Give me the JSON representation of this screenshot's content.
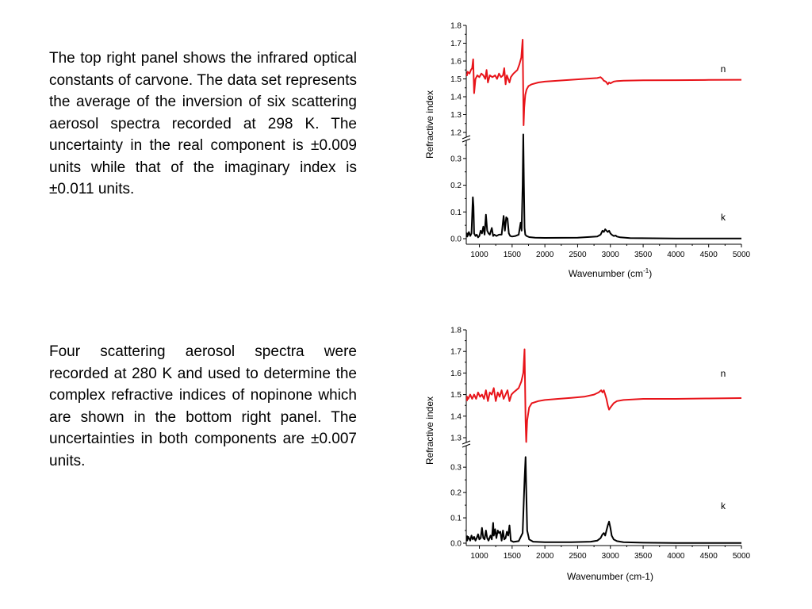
{
  "paragraphs": {
    "top": "The top right panel shows the infrared optical constants of carvone.  The data set represents the average of the inversion of six scattering aerosol spectra recorded at 298 K.  The uncertainty in the real component is ±0.009 units while that of the imaginary index is ±0.011 units.",
    "bottom": "Four scattering aerosol spectra were recorded at 280 K and used to determine the complex refractive indices of nopinone which are shown in the bottom right panel.  The uncertainties in both components are ±0.007 units."
  },
  "colors": {
    "n_series": "#e8141a",
    "k_series": "#000000"
  },
  "chart_data": [
    {
      "type": "line",
      "ylabel": "Refractive index",
      "xlabel": "Wavenumber (cm-1)",
      "xlabel_superscript": true,
      "xlim": [
        800,
        5000
      ],
      "x_ticks": [
        1000,
        1500,
        2000,
        2500,
        3000,
        3500,
        4000,
        4500,
        5000
      ],
      "axis_break": true,
      "n_ylim": [
        1.2,
        1.8
      ],
      "n_ticks": [
        "1.2",
        "1.3",
        "1.4",
        "1.5",
        "1.6",
        "1.7",
        "1.8"
      ],
      "k_ylim": [
        0.0,
        0.35
      ],
      "k_ticks": [
        "0.0",
        "0.1",
        "0.2",
        "0.3"
      ],
      "series": [
        {
          "name": "n",
          "x": [
            780,
            800,
            820,
            850,
            870,
            890,
            905,
            920,
            940,
            970,
            1000,
            1030,
            1060,
            1090,
            1110,
            1130,
            1160,
            1200,
            1240,
            1270,
            1300,
            1330,
            1360,
            1380,
            1400,
            1420,
            1440,
            1460,
            1480,
            1500,
            1520,
            1550,
            1580,
            1610,
            1640,
            1660,
            1675,
            1685,
            1700,
            1720,
            1750,
            1800,
            1900,
            2000,
            2200,
            2400,
            2600,
            2800,
            2850,
            2880,
            2900,
            2930,
            2960,
            2980,
            3000,
            3050,
            3100,
            3200,
            3500,
            4000,
            4500,
            5000
          ],
          "y": [
            1.53,
            1.52,
            1.54,
            1.53,
            1.55,
            1.56,
            1.61,
            1.42,
            1.5,
            1.52,
            1.51,
            1.53,
            1.52,
            1.5,
            1.55,
            1.48,
            1.52,
            1.51,
            1.52,
            1.5,
            1.53,
            1.51,
            1.52,
            1.56,
            1.47,
            1.52,
            1.5,
            1.48,
            1.51,
            1.52,
            1.53,
            1.54,
            1.55,
            1.58,
            1.62,
            1.72,
            1.24,
            1.34,
            1.41,
            1.44,
            1.46,
            1.47,
            1.48,
            1.485,
            1.49,
            1.495,
            1.5,
            1.505,
            1.51,
            1.5,
            1.49,
            1.485,
            1.47,
            1.48,
            1.475,
            1.485,
            1.488,
            1.49,
            1.492,
            1.493,
            1.494,
            1.495
          ]
        },
        {
          "name": "k",
          "x": [
            780,
            800,
            820,
            840,
            860,
            880,
            900,
            910,
            920,
            940,
            960,
            980,
            1000,
            1020,
            1040,
            1060,
            1080,
            1100,
            1120,
            1140,
            1160,
            1190,
            1210,
            1230,
            1260,
            1300,
            1340,
            1370,
            1390,
            1410,
            1430,
            1450,
            1470,
            1500,
            1550,
            1600,
            1630,
            1645,
            1660,
            1670,
            1680,
            1690,
            1700,
            1720,
            1760,
            1850,
            2000,
            2500,
            2800,
            2850,
            2880,
            2900,
            2920,
            2940,
            2960,
            2980,
            3000,
            3020,
            3050,
            3080,
            3100,
            3150,
            3300,
            4000,
            5000
          ],
          "y": [
            0.005,
            0.02,
            0.01,
            0.025,
            0.01,
            0.02,
            0.155,
            0.12,
            0.02,
            0.01,
            0.015,
            0.005,
            0.01,
            0.03,
            0.02,
            0.045,
            0.015,
            0.09,
            0.03,
            0.02,
            0.015,
            0.04,
            0.01,
            0.015,
            0.01,
            0.015,
            0.015,
            0.085,
            0.03,
            0.08,
            0.075,
            0.02,
            0.01,
            0.008,
            0.01,
            0.015,
            0.06,
            0.03,
            0.2,
            0.39,
            0.2,
            0.04,
            0.015,
            0.01,
            0.006,
            0.004,
            0.003,
            0.004,
            0.008,
            0.015,
            0.03,
            0.025,
            0.035,
            0.03,
            0.025,
            0.03,
            0.02,
            0.015,
            0.01,
            0.012,
            0.008,
            0.005,
            0.002,
            0.001,
            0.001
          ]
        }
      ]
    },
    {
      "type": "line",
      "ylabel": "Refractive index",
      "xlabel": "Wavenumber (cm-1)",
      "xlabel_superscript": false,
      "xlim": [
        800,
        5000
      ],
      "x_ticks": [
        1000,
        1500,
        2000,
        2500,
        3000,
        3500,
        4000,
        4500,
        5000
      ],
      "axis_break": true,
      "n_ylim": [
        1.25,
        1.8
      ],
      "n_ticks": [
        "1.3",
        "1.4",
        "1.5",
        "1.6",
        "1.7",
        "1.8"
      ],
      "k_ylim": [
        0.0,
        0.36
      ],
      "k_ticks": [
        "0.0",
        "0.1",
        "0.2",
        "0.3"
      ],
      "series": [
        {
          "name": "n",
          "x": [
            780,
            800,
            830,
            860,
            890,
            920,
            950,
            980,
            1010,
            1040,
            1070,
            1100,
            1130,
            1160,
            1190,
            1220,
            1250,
            1280,
            1310,
            1340,
            1370,
            1400,
            1430,
            1460,
            1490,
            1520,
            1560,
            1600,
            1640,
            1670,
            1690,
            1705,
            1715,
            1730,
            1760,
            1800,
            1900,
            2000,
            2200,
            2400,
            2600,
            2750,
            2820,
            2860,
            2880,
            2900,
            2920,
            2940,
            2960,
            2980,
            3000,
            3050,
            3100,
            3200,
            3500,
            4000,
            4500,
            5000
          ],
          "y": [
            1.47,
            1.49,
            1.48,
            1.5,
            1.48,
            1.5,
            1.48,
            1.51,
            1.49,
            1.5,
            1.48,
            1.52,
            1.47,
            1.51,
            1.5,
            1.53,
            1.47,
            1.51,
            1.49,
            1.52,
            1.48,
            1.5,
            1.52,
            1.47,
            1.5,
            1.51,
            1.52,
            1.53,
            1.56,
            1.6,
            1.71,
            1.38,
            1.28,
            1.38,
            1.44,
            1.46,
            1.47,
            1.475,
            1.48,
            1.485,
            1.49,
            1.5,
            1.51,
            1.52,
            1.51,
            1.52,
            1.5,
            1.48,
            1.45,
            1.43,
            1.44,
            1.46,
            1.47,
            1.475,
            1.48,
            1.48,
            1.482,
            1.484
          ]
        },
        {
          "name": "k",
          "x": [
            780,
            800,
            830,
            860,
            880,
            900,
            920,
            940,
            960,
            980,
            1000,
            1020,
            1040,
            1060,
            1080,
            1100,
            1120,
            1140,
            1170,
            1190,
            1210,
            1220,
            1240,
            1260,
            1280,
            1300,
            1320,
            1340,
            1360,
            1380,
            1400,
            1420,
            1440,
            1460,
            1480,
            1520,
            1600,
            1660,
            1690,
            1705,
            1715,
            1730,
            1760,
            1820,
            2000,
            2400,
            2700,
            2800,
            2850,
            2880,
            2900,
            2920,
            2940,
            2960,
            2980,
            3000,
            3020,
            3050,
            3100,
            3200,
            3500,
            4000,
            5000
          ],
          "y": [
            0.03,
            0.01,
            0.025,
            0.01,
            0.03,
            0.015,
            0.025,
            0.01,
            0.02,
            0.035,
            0.015,
            0.02,
            0.06,
            0.02,
            0.015,
            0.05,
            0.02,
            0.01,
            0.03,
            0.015,
            0.08,
            0.03,
            0.055,
            0.02,
            0.05,
            0.04,
            0.045,
            0.01,
            0.05,
            0.015,
            0.02,
            0.045,
            0.03,
            0.07,
            0.01,
            0.005,
            0.008,
            0.04,
            0.25,
            0.34,
            0.22,
            0.05,
            0.015,
            0.006,
            0.004,
            0.004,
            0.006,
            0.01,
            0.02,
            0.035,
            0.04,
            0.03,
            0.05,
            0.07,
            0.085,
            0.06,
            0.03,
            0.015,
            0.008,
            0.004,
            0.002,
            0.001,
            0.001
          ]
        }
      ]
    }
  ]
}
